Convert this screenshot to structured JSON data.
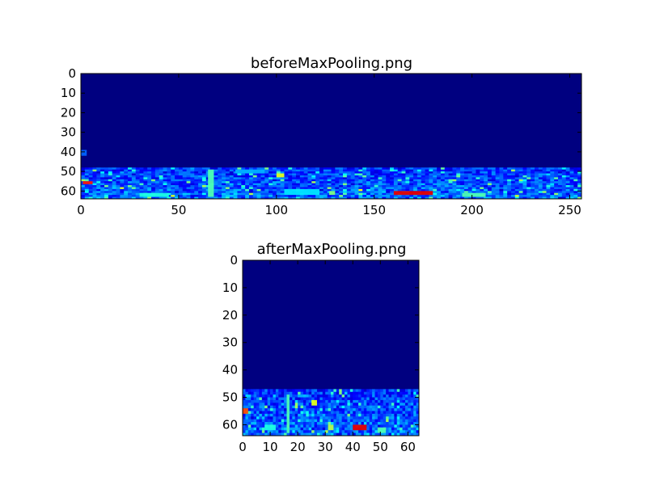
{
  "chart_data": [
    {
      "type": "heatmap",
      "title": "beforeMaxPooling.png",
      "colormap": "jet",
      "colors": {
        "background": "#00007f",
        "low": "#0000ff",
        "mid": "#00ffff",
        "warm": "#ffff00",
        "hot": "#ff0000"
      },
      "shape": [
        64,
        256
      ],
      "xlim": [
        0,
        256
      ],
      "ylim": [
        64,
        0
      ],
      "xticks": [
        0,
        50,
        100,
        150,
        200,
        250
      ],
      "yticks": [
        0,
        10,
        20,
        30,
        40,
        50,
        60
      ],
      "xtick_labels": [
        "0",
        "50",
        "100",
        "150",
        "200",
        "250"
      ],
      "ytick_labels": [
        "0",
        "10",
        "20",
        "30",
        "40",
        "50",
        "60"
      ],
      "background_value": 0.0,
      "active_rows_start": 48,
      "hotspots": [
        {
          "x": 1,
          "y": 55,
          "w": 5,
          "h": 1.5,
          "value": 0.85
        },
        {
          "x": 0,
          "y": 39,
          "w": 3,
          "h": 3,
          "value": 0.22
        },
        {
          "x": 65,
          "y": 49,
          "w": 3,
          "h": 14,
          "value": 0.45
        },
        {
          "x": 100,
          "y": 51,
          "w": 4,
          "h": 2,
          "value": 0.6
        },
        {
          "x": 104,
          "y": 59,
          "w": 18,
          "h": 3,
          "value": 0.35
        },
        {
          "x": 127,
          "y": 60,
          "w": 3,
          "h": 2,
          "value": 0.5
        },
        {
          "x": 160,
          "y": 60,
          "w": 20,
          "h": 2,
          "value": 0.9
        },
        {
          "x": 195,
          "y": 61,
          "w": 12,
          "h": 2,
          "value": 0.45
        },
        {
          "x": 30,
          "y": 61,
          "w": 15,
          "h": 2,
          "value": 0.4
        },
        {
          "x": 79,
          "y": 49,
          "w": 15,
          "h": 2,
          "value": 0.3
        }
      ]
    },
    {
      "type": "heatmap",
      "title": "afterMaxPooling.png",
      "colormap": "jet",
      "colors": {
        "background": "#00007f",
        "low": "#0000ff",
        "mid": "#00ffff",
        "warm": "#ffff00",
        "hot": "#ff0000"
      },
      "shape": [
        64,
        64
      ],
      "xlim": [
        0,
        64
      ],
      "ylim": [
        64,
        0
      ],
      "xticks": [
        0,
        10,
        20,
        30,
        40,
        50,
        60
      ],
      "yticks": [
        0,
        10,
        20,
        30,
        40,
        50,
        60
      ],
      "xtick_labels": [
        "0",
        "10",
        "20",
        "30",
        "40",
        "50",
        "60"
      ],
      "ytick_labels": [
        "0",
        "10",
        "20",
        "30",
        "40",
        "50",
        "60"
      ],
      "background_value": 0.0,
      "active_rows_start": 47,
      "hotspots": [
        {
          "x": 0,
          "y": 54,
          "w": 2,
          "h": 2,
          "value": 0.8
        },
        {
          "x": 16,
          "y": 49,
          "w": 1,
          "h": 14,
          "value": 0.45
        },
        {
          "x": 25,
          "y": 51,
          "w": 2,
          "h": 2,
          "value": 0.6
        },
        {
          "x": 31,
          "y": 60,
          "w": 2,
          "h": 2,
          "value": 0.55
        },
        {
          "x": 40,
          "y": 60,
          "w": 5,
          "h": 2,
          "value": 0.9
        },
        {
          "x": 49,
          "y": 61,
          "w": 3,
          "h": 2,
          "value": 0.45
        },
        {
          "x": 8,
          "y": 60,
          "w": 4,
          "h": 2,
          "value": 0.4
        },
        {
          "x": 20,
          "y": 49,
          "w": 4,
          "h": 1,
          "value": 0.3
        }
      ]
    }
  ]
}
